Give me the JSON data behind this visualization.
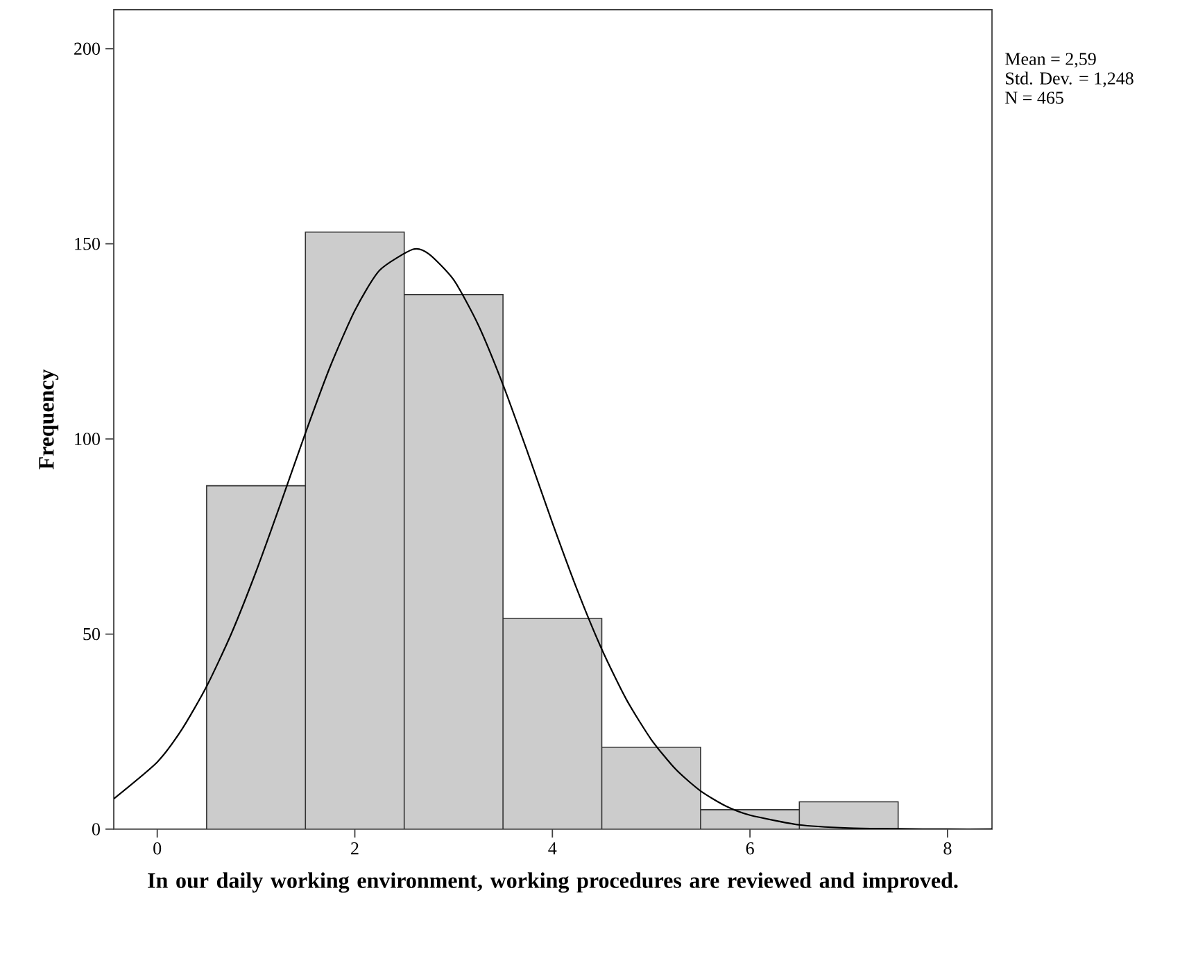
{
  "chart_data": {
    "type": "histogram",
    "bins": [
      0.5,
      1.5,
      2.5,
      3.5,
      4.5,
      5.5,
      6.5,
      7.5
    ],
    "values": [
      88,
      153,
      137,
      54,
      21,
      5,
      7
    ],
    "color": "#cccccc",
    "series": [
      {
        "type": "line",
        "color": "#000000",
        "x": [
          -0.44,
          0,
          0.25,
          0.5,
          0.75,
          1,
          1.25,
          1.5,
          1.75,
          2,
          2.25,
          2.59,
          2.75,
          3,
          3.25,
          3.5,
          3.75,
          4,
          4.25,
          4.5,
          4.75,
          5,
          5.25,
          5.5,
          5.75,
          6,
          6.5,
          7,
          7.5,
          8,
          8.45
        ],
        "values": [
          7.8,
          17.2,
          25.6,
          36.6,
          50.1,
          66.0,
          83.5,
          101.5,
          118.5,
          132.9,
          143.2,
          148.6,
          147.4,
          140.8,
          129.2,
          113.9,
          96.5,
          78.5,
          61.4,
          46.1,
          33.2,
          23.0,
          15.3,
          9.8,
          6.0,
          3.6,
          1.1,
          0.3,
          0.1,
          0.0,
          0.0
        ]
      }
    ],
    "xlim": [
      -0.44,
      8.45
    ],
    "ylim": [
      0,
      210
    ],
    "xticks": [
      0,
      2,
      4,
      6,
      8
    ],
    "yticks": [
      0,
      50,
      100,
      150,
      200
    ],
    "xlabel": "In our daily working environment, working procedures are reviewed and improved.",
    "ylabel": "Frequency",
    "annotations": [
      "Mean = 2,59",
      "Std. Dev. = 1,248",
      "N = 465"
    ],
    "grid": false
  }
}
